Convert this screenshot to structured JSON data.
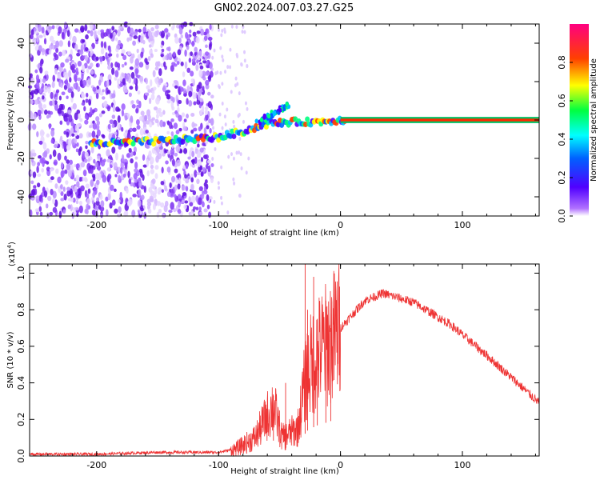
{
  "title": "GN02.2024.007.03.27.G25",
  "chart_data": [
    {
      "type": "heatmap",
      "xlabel": "Height of straight line (km)",
      "ylabel": "Frequency (Hz)",
      "xlim": [
        -255,
        163
      ],
      "ylim": [
        -50,
        50
      ],
      "xticks": [
        -200,
        -100,
        0,
        100
      ],
      "yticks": [
        -40,
        -20,
        0,
        20,
        40
      ],
      "colorbar": {
        "label": "Normalized spectral amplitude",
        "range": [
          0,
          1
        ],
        "ticks": [
          "0.0",
          "0.2",
          "0.4",
          "0.6",
          "0.8"
        ],
        "tick_values": [
          0,
          0.2,
          0.4,
          0.6,
          0.8
        ]
      },
      "ridge": [
        {
          "x": -205,
          "y": -12
        },
        {
          "x": -180,
          "y": -12
        },
        {
          "x": -150,
          "y": -11
        },
        {
          "x": -125,
          "y": -10
        },
        {
          "x": -100,
          "y": -9
        },
        {
          "x": -80,
          "y": -6
        },
        {
          "x": -60,
          "y": -2
        },
        {
          "x": -40,
          "y": -1
        },
        {
          "x": -20,
          "y": -1
        },
        {
          "x": 0,
          "y": 0
        },
        {
          "x": 163,
          "y": 0
        }
      ],
      "grid": false
    },
    {
      "type": "line",
      "xlabel": "Height of straight line (km)",
      "ylabel": "SNR (10 * v/v)",
      "y_multiplier": "(x10^4)",
      "y_multiplier_base": "(x10",
      "y_multiplier_exp": "4",
      "y_multiplier_close": ")",
      "xlim": [
        -255,
        163
      ],
      "ylim": [
        0,
        1.05
      ],
      "xticks": [
        -200,
        -100,
        0,
        100
      ],
      "yticks": [
        "0.0",
        "0.2",
        "0.4",
        "0.6",
        "0.8",
        "1.0"
      ],
      "ytick_values": [
        0,
        0.2,
        0.4,
        0.6,
        0.8,
        1.0
      ],
      "color": "#ee3333",
      "envelope": [
        {
          "x": -255,
          "y": 0.01
        },
        {
          "x": -200,
          "y": 0.01
        },
        {
          "x": -150,
          "y": 0.02
        },
        {
          "x": -100,
          "y": 0.02
        },
        {
          "x": -85,
          "y": 0.04
        },
        {
          "x": -70,
          "y": 0.1
        },
        {
          "x": -55,
          "y": 0.28
        },
        {
          "x": -48,
          "y": 0.1
        },
        {
          "x": -35,
          "y": 0.15
        },
        {
          "x": -28,
          "y": 0.45
        },
        {
          "x": -20,
          "y": 0.55
        },
        {
          "x": -10,
          "y": 0.62
        },
        {
          "x": 0,
          "y": 0.7
        },
        {
          "x": 20,
          "y": 0.85
        },
        {
          "x": 35,
          "y": 0.89
        },
        {
          "x": 60,
          "y": 0.84
        },
        {
          "x": 90,
          "y": 0.72
        },
        {
          "x": 120,
          "y": 0.55
        },
        {
          "x": 145,
          "y": 0.4
        },
        {
          "x": 163,
          "y": 0.29
        }
      ],
      "spikes": [
        {
          "x": -29,
          "y": 1.05
        },
        {
          "x": -27,
          "y": 0.8
        },
        {
          "x": -22,
          "y": 0.98
        },
        {
          "x": -19,
          "y": 0.75
        },
        {
          "x": -12,
          "y": 0.85
        },
        {
          "x": -8,
          "y": 0.7
        },
        {
          "x": -45,
          "y": 0.4
        },
        {
          "x": -55,
          "y": 0.33
        }
      ],
      "grid": false
    }
  ]
}
